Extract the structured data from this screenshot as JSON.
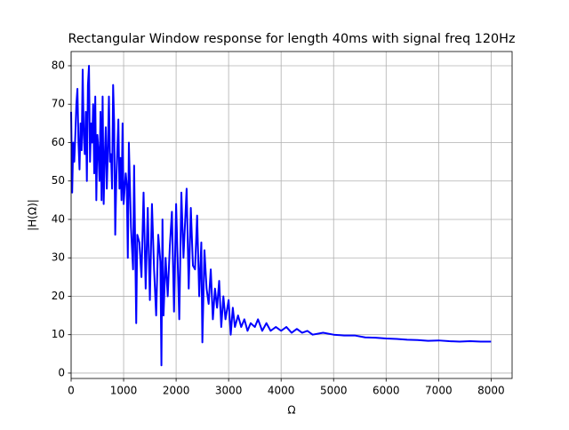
{
  "chart_data": {
    "type": "line",
    "title": "Rectangular Window response for length 40ms with signal freq 120Hz",
    "xlabel": "Ω",
    "ylabel": "|H(Ω)|",
    "x": [
      0,
      20,
      40,
      60,
      80,
      100,
      120,
      140,
      160,
      180,
      200,
      220,
      240,
      260,
      280,
      300,
      320,
      340,
      360,
      380,
      400,
      420,
      440,
      460,
      480,
      500,
      520,
      540,
      560,
      580,
      600,
      620,
      640,
      660,
      680,
      700,
      720,
      740,
      760,
      780,
      800,
      820,
      840,
      860,
      880,
      900,
      920,
      940,
      960,
      980,
      1000,
      1040,
      1060,
      1080,
      1100,
      1140,
      1180,
      1200,
      1240,
      1260,
      1300,
      1340,
      1380,
      1420,
      1460,
      1500,
      1540,
      1580,
      1620,
      1660,
      1700,
      1720,
      1740,
      1760,
      1800,
      1840,
      1880,
      1920,
      1960,
      2000,
      2060,
      2100,
      2140,
      2200,
      2240,
      2280,
      2320,
      2360,
      2400,
      2440,
      2480,
      2500,
      2540,
      2580,
      2620,
      2660,
      2700,
      2740,
      2780,
      2820,
      2860,
      2900,
      2940,
      3000,
      3040,
      3080,
      3120,
      3180,
      3240,
      3300,
      3360,
      3420,
      3500,
      3560,
      3640,
      3720,
      3800,
      3900,
      4000,
      4100,
      4200,
      4300,
      4400,
      4500,
      4600,
      4800,
      5000,
      5200,
      5400,
      5600,
      5800,
      6000,
      6200,
      6400,
      6600,
      6800,
      7000,
      7200,
      7400,
      7600,
      7800,
      8000
    ],
    "series": [
      {
        "color": "#0000ff",
        "values": [
          68,
          47,
          60,
          55,
          62,
          70,
          74,
          60,
          53,
          65,
          58,
          79,
          62,
          57,
          68,
          50,
          75,
          80,
          55,
          65,
          60,
          70,
          52,
          72,
          45,
          62,
          58,
          50,
          68,
          45,
          72,
          44,
          56,
          64,
          48,
          58,
          72,
          55,
          57,
          48,
          75,
          65,
          36,
          50,
          58,
          66,
          48,
          56,
          45,
          65,
          44,
          52,
          49,
          30,
          60,
          38,
          27,
          54,
          13,
          36,
          34,
          25,
          47,
          22,
          43,
          19,
          44,
          27,
          15,
          36,
          29,
          2,
          40,
          15,
          30,
          20,
          33,
          42,
          16,
          44,
          14,
          47,
          30,
          48,
          22,
          43,
          28,
          27,
          41,
          20,
          34,
          8,
          32,
          22,
          18,
          27,
          14,
          22,
          17,
          24,
          12,
          20,
          14,
          19,
          10,
          17,
          12,
          15,
          12,
          14,
          11,
          13,
          12,
          14,
          11,
          13,
          11,
          12,
          11,
          12,
          10.5,
          11.5,
          10.5,
          11,
          10,
          10.5,
          10,
          9.8,
          9.8,
          9.3,
          9.2,
          9,
          8.9,
          8.7,
          8.6,
          8.4,
          8.5,
          8.3,
          8.2,
          8.3,
          8.2,
          8.2
        ]
      }
    ],
    "xlim": [
      0,
      8400
    ],
    "ylim": [
      -1.4,
      83.7
    ],
    "xticks": [
      0,
      1000,
      2000,
      3000,
      4000,
      5000,
      6000,
      7000,
      8000
    ],
    "yticks": [
      0,
      10,
      20,
      30,
      40,
      50,
      60,
      70,
      80
    ],
    "grid": true
  }
}
